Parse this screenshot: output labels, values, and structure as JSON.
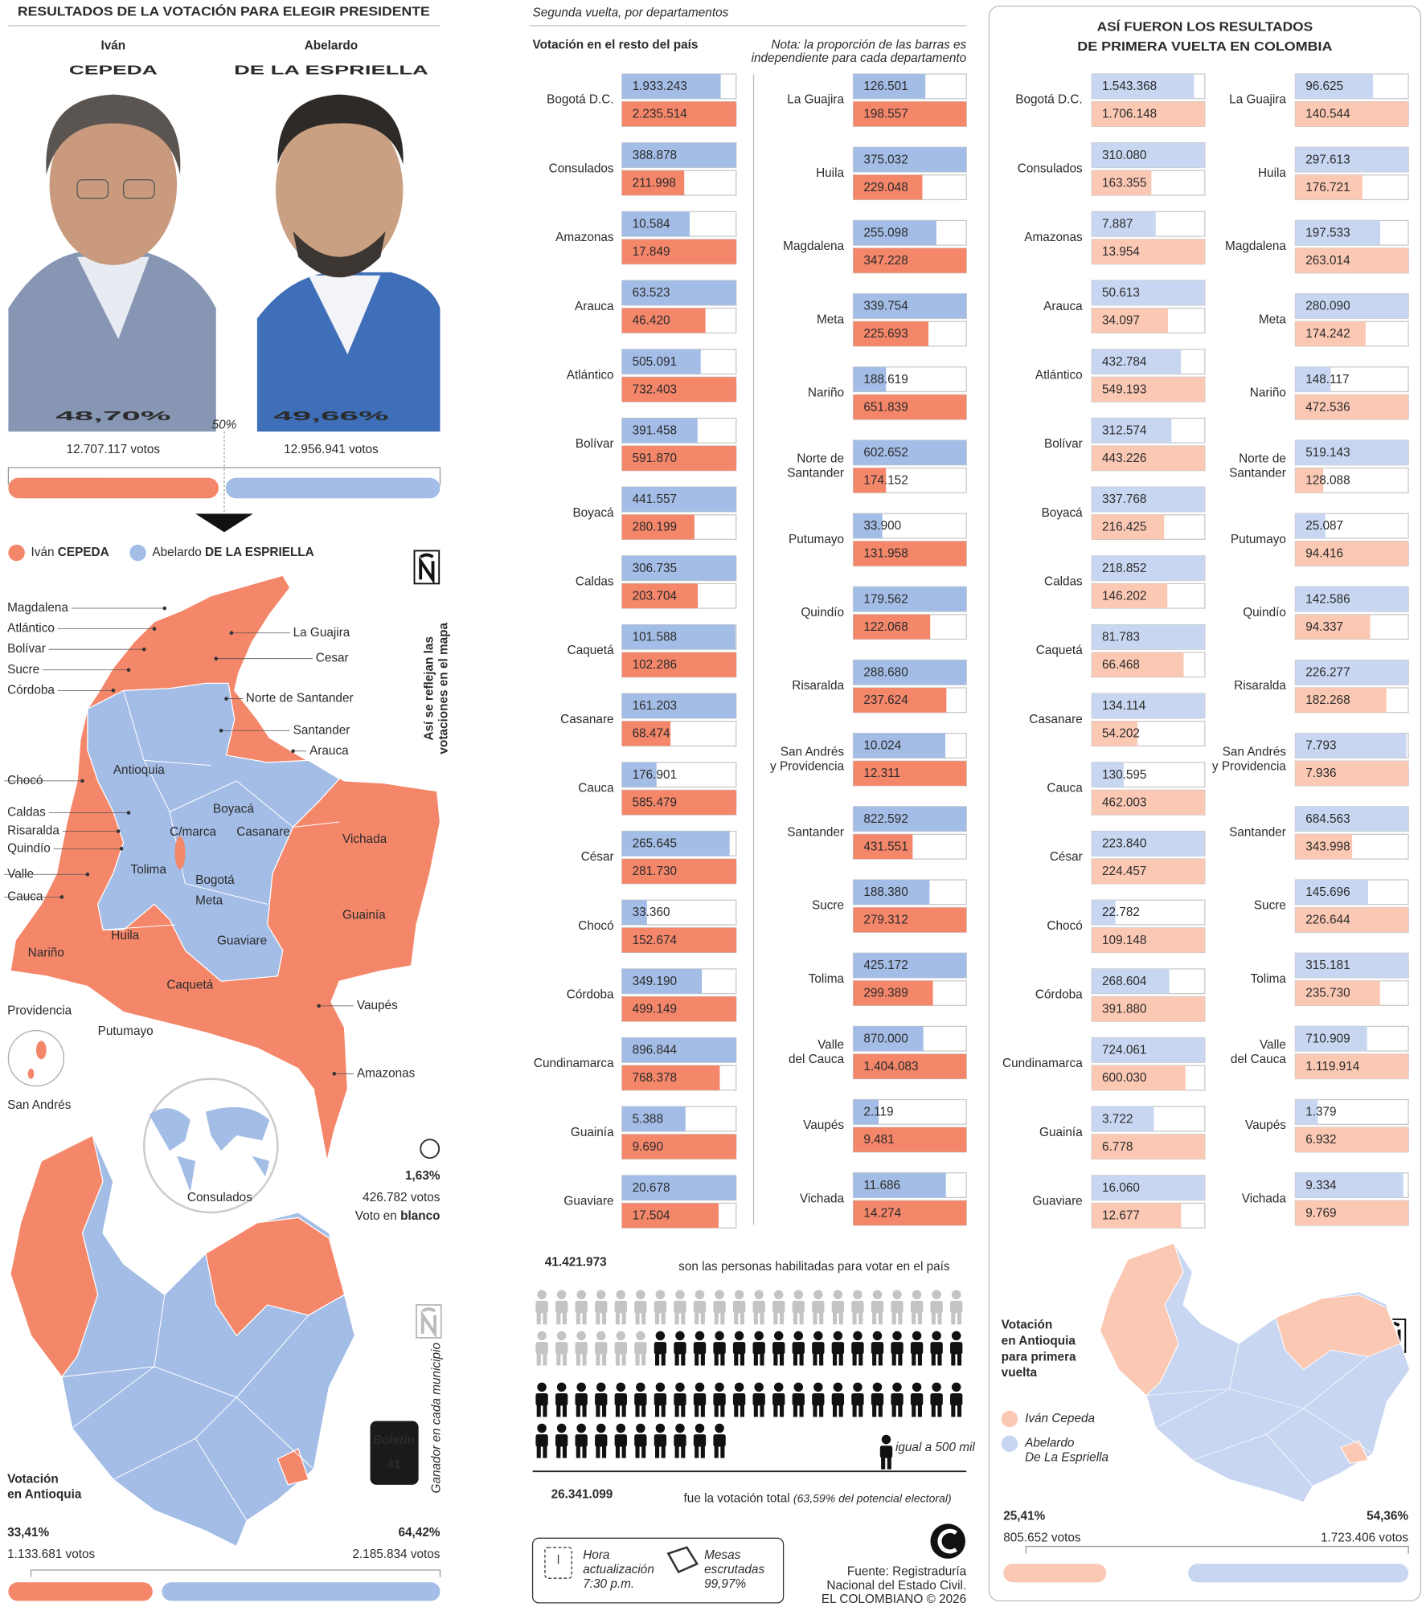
{
  "colors": {
    "cepeda": "#f4866a",
    "espriella": "#a3bde6",
    "cepeda_light": "#fbc8b4",
    "espriella_light": "#c8d6f1"
  },
  "header": {
    "title": "RESULTADOS DE LA VOTACIÓN PARA ELEGIR PRESIDENTE"
  },
  "national": {
    "candidates": [
      {
        "first_name": "Iván",
        "last_name": "CEPEDA",
        "pct": 48.7,
        "pct_label": "48,70%",
        "votes": "12.707.117 votos"
      },
      {
        "first_name": "Abelardo",
        "last_name": "DE LA ESPRIELLA",
        "pct": 49.66,
        "pct_label": "49,66%",
        "votes": "12.956.941 votos"
      }
    ],
    "midpoint": "50%",
    "map_caption": [
      "Así se reflejan las",
      "votaciones en el mapa"
    ],
    "map_labels": [
      "Magdalena",
      "Atlántico",
      "Bolívar",
      "Sucre",
      "Córdoba",
      "La Guajira",
      "Cesar",
      "Norte de Santander",
      "Santander",
      "Arauca",
      "Antioquia",
      "Chocó",
      "Caldas",
      "Risaralda",
      "Quindío",
      "Valle",
      "Cauca",
      "Boyacá",
      "C/marca",
      "Casanare",
      "Vichada",
      "Tolima",
      "Bogotá",
      "Meta",
      "Guainía",
      "Huila",
      "Guaviare",
      "Nariño",
      "Caquetá",
      "Providencia",
      "Vaupés",
      "Putumayo",
      "Amazonas",
      "San Andrés",
      "Consulados"
    ],
    "blank": {
      "pct": "1,63%",
      "votes": "426.782 votos",
      "label": "Voto en",
      "label_bold": "blanco"
    }
  },
  "antioquia": {
    "title": [
      "Votación",
      "en Antioquia"
    ],
    "caption": "Ganador en cada municipio",
    "bulletin_label": "Boletín",
    "bulletin_number": "41",
    "results": [
      {
        "pct": 33.41,
        "pct_label": "33,41%",
        "votes": "1.133.681 votos"
      },
      {
        "pct": 64.42,
        "pct_label": "64,42%",
        "votes": "2.185.834 votos"
      }
    ]
  },
  "second_round": {
    "subtitle": "Segunda vuelta, por departamentos",
    "heading": "Votación en el resto del país",
    "note": [
      "Nota: la proporción de las barras es",
      "independiente para cada departamento"
    ],
    "columns": [
      [
        {
          "name": [
            "Bogotá D.C."
          ],
          "values": [
            1933243,
            2235514
          ],
          "value_labels": [
            "1.933.243",
            "2.235.514"
          ]
        },
        {
          "name": [
            "Consulados"
          ],
          "values": [
            388878,
            211998
          ],
          "value_labels": [
            "388.878",
            "211.998"
          ]
        },
        {
          "name": [
            "Amazonas"
          ],
          "values": [
            10584,
            17849
          ],
          "value_labels": [
            "10.584",
            "17.849"
          ]
        },
        {
          "name": [
            "Arauca"
          ],
          "values": [
            63523,
            46420
          ],
          "value_labels": [
            "63.523",
            "46.420"
          ]
        },
        {
          "name": [
            "Atlántico"
          ],
          "values": [
            505091,
            732403
          ],
          "value_labels": [
            "505.091",
            "732.403"
          ]
        },
        {
          "name": [
            "Bolívar"
          ],
          "values": [
            391458,
            591870
          ],
          "value_labels": [
            "391.458",
            "591.870"
          ]
        },
        {
          "name": [
            "Boyacá"
          ],
          "values": [
            441557,
            280199
          ],
          "value_labels": [
            "441.557",
            "280.199"
          ]
        },
        {
          "name": [
            "Caldas"
          ],
          "values": [
            306735,
            203704
          ],
          "value_labels": [
            "306.735",
            "203.704"
          ]
        },
        {
          "name": [
            "Caquetá"
          ],
          "values": [
            101588,
            102286
          ],
          "value_labels": [
            "101.588",
            "102.286"
          ]
        },
        {
          "name": [
            "Casanare"
          ],
          "values": [
            161203,
            68474
          ],
          "value_labels": [
            "161.203",
            "68.474"
          ]
        },
        {
          "name": [
            "Cauca"
          ],
          "values": [
            176901,
            585479
          ],
          "value_labels": [
            "176.901",
            "585.479"
          ]
        },
        {
          "name": [
            "César"
          ],
          "values": [
            265645,
            281730
          ],
          "value_labels": [
            "265.645",
            "281.730"
          ]
        },
        {
          "name": [
            "Chocó"
          ],
          "values": [
            33360,
            152674
          ],
          "value_labels": [
            "33.360",
            "152.674"
          ]
        },
        {
          "name": [
            "Córdoba"
          ],
          "values": [
            349190,
            499149
          ],
          "value_labels": [
            "349.190",
            "499.149"
          ]
        },
        {
          "name": [
            "Cundinamarca"
          ],
          "values": [
            896844,
            768378
          ],
          "value_labels": [
            "896.844",
            "768.378"
          ]
        },
        {
          "name": [
            "Guainía"
          ],
          "values": [
            5388,
            9690
          ],
          "value_labels": [
            "5.388",
            "9.690"
          ]
        },
        {
          "name": [
            "Guaviare"
          ],
          "values": [
            20678,
            17504
          ],
          "value_labels": [
            "20.678",
            "17.504"
          ]
        }
      ],
      [
        {
          "name": [
            "La Guajira"
          ],
          "values": [
            126501,
            198557
          ],
          "value_labels": [
            "126.501",
            "198.557"
          ]
        },
        {
          "name": [
            "Huila"
          ],
          "values": [
            375032,
            229048
          ],
          "value_labels": [
            "375.032",
            "229.048"
          ]
        },
        {
          "name": [
            "Magdalena"
          ],
          "values": [
            255098,
            347228
          ],
          "value_labels": [
            "255.098",
            "347.228"
          ]
        },
        {
          "name": [
            "Meta"
          ],
          "values": [
            339754,
            225693
          ],
          "value_labels": [
            "339.754",
            "225.693"
          ]
        },
        {
          "name": [
            "Nariño"
          ],
          "values": [
            188619,
            651839
          ],
          "value_labels": [
            "188.619",
            "651.839"
          ]
        },
        {
          "name": [
            "Norte de",
            "Santander"
          ],
          "values": [
            602652,
            174152
          ],
          "value_labels": [
            "602.652",
            "174.152"
          ]
        },
        {
          "name": [
            "Putumayo"
          ],
          "values": [
            33900,
            131958
          ],
          "value_labels": [
            "33.900",
            "131.958"
          ]
        },
        {
          "name": [
            "Quindío"
          ],
          "values": [
            179562,
            122068
          ],
          "value_labels": [
            "179.562",
            "122.068"
          ]
        },
        {
          "name": [
            "Risaralda"
          ],
          "values": [
            288680,
            237624
          ],
          "value_labels": [
            "288.680",
            "237.624"
          ]
        },
        {
          "name": [
            "San Andrés",
            "y Providencia"
          ],
          "values": [
            10024,
            12311
          ],
          "value_labels": [
            "10.024",
            "12.311"
          ]
        },
        {
          "name": [
            "Santander"
          ],
          "values": [
            822592,
            431551
          ],
          "value_labels": [
            "822.592",
            "431.551"
          ]
        },
        {
          "name": [
            "Sucre"
          ],
          "values": [
            188380,
            279312
          ],
          "value_labels": [
            "188.380",
            "279.312"
          ]
        },
        {
          "name": [
            "Tolima"
          ],
          "values": [
            425172,
            299389
          ],
          "value_labels": [
            "425.172",
            "299.389"
          ]
        },
        {
          "name": [
            "Valle",
            "del Cauca"
          ],
          "values": [
            870000,
            1404083
          ],
          "value_labels": [
            "870.000",
            "1.404.083"
          ]
        },
        {
          "name": [
            "Vaupés"
          ],
          "values": [
            2119,
            9481
          ],
          "value_labels": [
            "2.119",
            "9.481"
          ]
        },
        {
          "name": [
            "Vichada"
          ],
          "values": [
            11686,
            14274
          ],
          "value_labels": [
            "11.686",
            "14.274"
          ]
        }
      ]
    ]
  },
  "turnout": {
    "eligible": "41.421.973",
    "eligible_text": "son las personas habilitadas para votar en el país",
    "icon_legend": "igual a 500 mil",
    "total": "26.341.099",
    "total_text": "fue la votación total",
    "total_note": "(63,59% del potencial electoral)"
  },
  "footer": {
    "update_label": [
      "Hora",
      "actualización"
    ],
    "update_time": "7:30 p.m.",
    "tables_label": [
      "Mesas",
      "escrutadas"
    ],
    "tables_pct": "99,97%",
    "source": [
      "Fuente: Registraduría",
      "Nacional del Estado Civil."
    ],
    "credit": "EL COLOMBIANO © 2026"
  },
  "first_round": {
    "title": [
      "ASÍ FUERON LOS RESULTADOS",
      "DE PRIMERA VUELTA EN COLOMBIA"
    ],
    "columns": [
      [
        {
          "name": [
            "Bogotá D.C."
          ],
          "values": [
            1543368,
            1706148
          ],
          "value_labels": [
            "1.543.368",
            "1.706.148"
          ]
        },
        {
          "name": [
            "Consulados"
          ],
          "values": [
            310080,
            163355
          ],
          "value_labels": [
            "310.080",
            "163.355"
          ]
        },
        {
          "name": [
            "Amazonas"
          ],
          "values": [
            7887,
            13954
          ],
          "value_labels": [
            "7.887",
            "13.954"
          ]
        },
        {
          "name": [
            "Arauca"
          ],
          "values": [
            50613,
            34097
          ],
          "value_labels": [
            "50.613",
            "34.097"
          ]
        },
        {
          "name": [
            "Atlántico"
          ],
          "values": [
            432784,
            549193
          ],
          "value_labels": [
            "432.784",
            "549.193"
          ]
        },
        {
          "name": [
            "Bolívar"
          ],
          "values": [
            312574,
            443226
          ],
          "value_labels": [
            "312.574",
            "443.226"
          ]
        },
        {
          "name": [
            "Boyacá"
          ],
          "values": [
            337768,
            216425
          ],
          "value_labels": [
            "337.768",
            "216.425"
          ]
        },
        {
          "name": [
            "Caldas"
          ],
          "values": [
            218852,
            146202
          ],
          "value_labels": [
            "218.852",
            "146.202"
          ]
        },
        {
          "name": [
            "Caquetá"
          ],
          "values": [
            81783,
            66468
          ],
          "value_labels": [
            "81.783",
            "66.468"
          ]
        },
        {
          "name": [
            "Casanare"
          ],
          "values": [
            134114,
            54202
          ],
          "value_labels": [
            "134.114",
            "54.202"
          ]
        },
        {
          "name": [
            "Cauca"
          ],
          "values": [
            130595,
            462003
          ],
          "value_labels": [
            "130.595",
            "462.003"
          ]
        },
        {
          "name": [
            "César"
          ],
          "values": [
            223840,
            224457
          ],
          "value_labels": [
            "223.840",
            "224.457"
          ]
        },
        {
          "name": [
            "Chocó"
          ],
          "values": [
            22782,
            109148
          ],
          "value_labels": [
            "22.782",
            "109.148"
          ]
        },
        {
          "name": [
            "Córdoba"
          ],
          "values": [
            268604,
            391880
          ],
          "value_labels": [
            "268.604",
            "391.880"
          ]
        },
        {
          "name": [
            "Cundinamarca"
          ],
          "values": [
            724061,
            600030
          ],
          "value_labels": [
            "724.061",
            "600.030"
          ]
        },
        {
          "name": [
            "Guainía"
          ],
          "values": [
            3722,
            6778
          ],
          "value_labels": [
            "3.722",
            "6.778"
          ]
        },
        {
          "name": [
            "Guaviare"
          ],
          "values": [
            16060,
            12677
          ],
          "value_labels": [
            "16.060",
            "12.677"
          ]
        }
      ],
      [
        {
          "name": [
            "La Guajira"
          ],
          "values": [
            96625,
            140544
          ],
          "value_labels": [
            "96.625",
            "140.544"
          ]
        },
        {
          "name": [
            "Huila"
          ],
          "values": [
            297613,
            176721
          ],
          "value_labels": [
            "297.613",
            "176.721"
          ]
        },
        {
          "name": [
            "Magdalena"
          ],
          "values": [
            197533,
            263014
          ],
          "value_labels": [
            "197.533",
            "263.014"
          ]
        },
        {
          "name": [
            "Meta"
          ],
          "values": [
            280090,
            174242
          ],
          "value_labels": [
            "280.090",
            "174.242"
          ]
        },
        {
          "name": [
            "Nariño"
          ],
          "values": [
            148117,
            472536
          ],
          "value_labels": [
            "148.117",
            "472.536"
          ]
        },
        {
          "name": [
            "Norte de",
            "Santander"
          ],
          "values": [
            519143,
            128088
          ],
          "value_labels": [
            "519.143",
            "128.088"
          ]
        },
        {
          "name": [
            "Putumayo"
          ],
          "values": [
            25087,
            94416
          ],
          "value_labels": [
            "25.087",
            "94.416"
          ]
        },
        {
          "name": [
            "Quindío"
          ],
          "values": [
            142586,
            94337
          ],
          "value_labels": [
            "142.586",
            "94.337"
          ]
        },
        {
          "name": [
            "Risaralda"
          ],
          "values": [
            226277,
            182268
          ],
          "value_labels": [
            "226.277",
            "182.268"
          ]
        },
        {
          "name": [
            "San Andrés",
            "y Providencia"
          ],
          "values": [
            7793,
            7936
          ],
          "value_labels": [
            "7.793",
            "7.936"
          ]
        },
        {
          "name": [
            "Santander"
          ],
          "values": [
            684563,
            343998
          ],
          "value_labels": [
            "684.563",
            "343.998"
          ]
        },
        {
          "name": [
            "Sucre"
          ],
          "values": [
            145696,
            226644
          ],
          "value_labels": [
            "145.696",
            "226.644"
          ]
        },
        {
          "name": [
            "Tolima"
          ],
          "values": [
            315181,
            235730
          ],
          "value_labels": [
            "315.181",
            "235.730"
          ]
        },
        {
          "name": [
            "Valle",
            "del Cauca"
          ],
          "values": [
            710909,
            1119914
          ],
          "value_labels": [
            "710.909",
            "1.119.914"
          ]
        },
        {
          "name": [
            "Vaupés"
          ],
          "values": [
            1379,
            6932
          ],
          "value_labels": [
            "1.379",
            "6.932"
          ]
        },
        {
          "name": [
            "Vichada"
          ],
          "values": [
            9334,
            9769
          ],
          "value_labels": [
            "9.334",
            "9.769"
          ]
        }
      ]
    ],
    "antioquia": {
      "title": [
        "Votación",
        "en Antioquia",
        "para primera",
        "vuelta"
      ],
      "legend": [
        [
          "Iván Cepeda"
        ],
        [
          "Abelardo",
          "De La Espriella"
        ]
      ],
      "results": [
        {
          "pct": 25.41,
          "pct_label": "25,41%",
          "votes": "805.652 votos"
        },
        {
          "pct": 54.36,
          "pct_label": "54,36%",
          "votes": "1.723.406 votos"
        }
      ]
    }
  }
}
